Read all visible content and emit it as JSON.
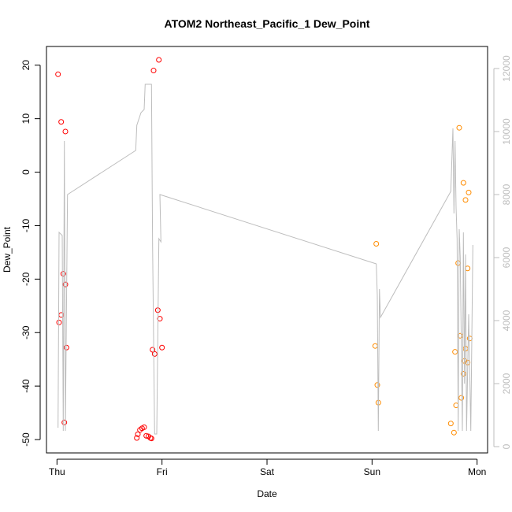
{
  "chart_data": {
    "type": "scatter",
    "title": "ATOM2 Northeast_Pacific_1 Dew_Point",
    "xlabel": "Date",
    "ylabel": "Dew_Point",
    "x_ticks": [
      "Thu",
      "Fri",
      "Sat",
      "Sun",
      "Mon"
    ],
    "xlim": [
      -0.1,
      4.1
    ],
    "ylim": [
      -52.5,
      23.5
    ],
    "y_ticks": [
      -50,
      -40,
      -30,
      -20,
      -10,
      0,
      10,
      20
    ],
    "y2lim": [
      -200,
      12700
    ],
    "y2_ticks": [
      0,
      2000,
      4000,
      6000,
      8000,
      10000,
      12000
    ],
    "grid": false,
    "series": [
      {
        "color": "#ff0000",
        "points": [
          [
            0.01,
            18.3
          ],
          [
            0.04,
            9.4
          ],
          [
            0.08,
            7.6
          ],
          [
            0.06,
            -19.0
          ],
          [
            0.08,
            -21.0
          ],
          [
            0.04,
            -26.7
          ],
          [
            0.02,
            -28.1
          ],
          [
            0.09,
            -32.8
          ],
          [
            0.07,
            -46.8
          ],
          [
            0.92,
            19.0
          ],
          [
            0.97,
            21.0
          ],
          [
            0.96,
            -25.8
          ],
          [
            0.98,
            -27.4
          ],
          [
            0.91,
            -33.2
          ],
          [
            0.93,
            -34.0
          ],
          [
            1.0,
            -32.8
          ],
          [
            0.76,
            -49.7
          ],
          [
            0.77,
            -49.0
          ],
          [
            0.79,
            -48.2
          ],
          [
            0.81,
            -47.9
          ],
          [
            0.83,
            -47.7
          ],
          [
            0.85,
            -49.3
          ],
          [
            0.87,
            -49.4
          ],
          [
            0.89,
            -49.7
          ],
          [
            0.9,
            -49.8
          ]
        ]
      },
      {
        "color": "#ff8c00",
        "points": [
          [
            3.04,
            -13.4
          ],
          [
            3.03,
            -32.5
          ],
          [
            3.05,
            -39.8
          ],
          [
            3.06,
            -43.1
          ],
          [
            3.83,
            8.3
          ],
          [
            3.87,
            -2.0
          ],
          [
            3.89,
            -5.2
          ],
          [
            3.92,
            -3.8
          ],
          [
            3.82,
            -17.0
          ],
          [
            3.91,
            -18.0
          ],
          [
            3.84,
            -30.6
          ],
          [
            3.93,
            -31.1
          ],
          [
            3.89,
            -33.0
          ],
          [
            3.79,
            -33.6
          ],
          [
            3.88,
            -35.3
          ],
          [
            3.91,
            -35.6
          ],
          [
            3.87,
            -37.7
          ],
          [
            3.85,
            -42.2
          ],
          [
            3.8,
            -43.6
          ],
          [
            3.75,
            -47.0
          ],
          [
            3.78,
            -48.7
          ]
        ]
      },
      {
        "axis": "right",
        "color": "#bdbdbd",
        "mode": "line",
        "points": [
          [
            0.01,
            600
          ],
          [
            0.02,
            6800
          ],
          [
            0.05,
            6700
          ],
          [
            0.06,
            500
          ],
          [
            0.07,
            9700
          ],
          [
            0.08,
            500
          ],
          [
            0.1,
            8000
          ],
          [
            0.75,
            9400
          ],
          [
            0.76,
            10200
          ],
          [
            0.8,
            10600
          ],
          [
            0.83,
            10700
          ],
          [
            0.84,
            11500
          ],
          [
            0.9,
            11500
          ],
          [
            0.91,
            6400
          ],
          [
            0.93,
            400
          ],
          [
            0.95,
            400
          ],
          [
            0.97,
            6600
          ],
          [
            0.99,
            6500
          ],
          [
            0.98,
            8000
          ],
          [
            3.04,
            5800
          ],
          [
            3.05,
            4800
          ],
          [
            3.06,
            500
          ],
          [
            3.07,
            5000
          ],
          [
            3.08,
            4100
          ],
          [
            3.75,
            8100
          ],
          [
            3.77,
            10100
          ],
          [
            3.78,
            7400
          ],
          [
            3.79,
            9700
          ],
          [
            3.8,
            7600
          ],
          [
            3.81,
            6600
          ],
          [
            3.82,
            500
          ],
          [
            3.83,
            6900
          ],
          [
            3.84,
            6000
          ],
          [
            3.86,
            500
          ],
          [
            3.87,
            6800
          ],
          [
            3.88,
            2000
          ],
          [
            3.89,
            6100
          ],
          [
            3.9,
            500
          ],
          [
            3.92,
            4200
          ],
          [
            3.94,
            500
          ],
          [
            3.96,
            6400
          ]
        ]
      }
    ]
  }
}
